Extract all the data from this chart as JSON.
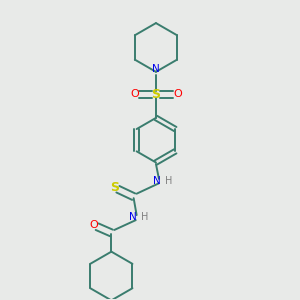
{
  "bg_color": "#e8eae8",
  "atom_colors": {
    "C": "#3a7d6e",
    "N": "#0000ee",
    "O": "#ff0000",
    "S": "#cccc00",
    "H": "#808080"
  },
  "bond_color": "#3a7d6e",
  "line_width": 1.4,
  "dbo": 0.008,
  "figsize": [
    3.0,
    3.0
  ],
  "dpi": 100
}
